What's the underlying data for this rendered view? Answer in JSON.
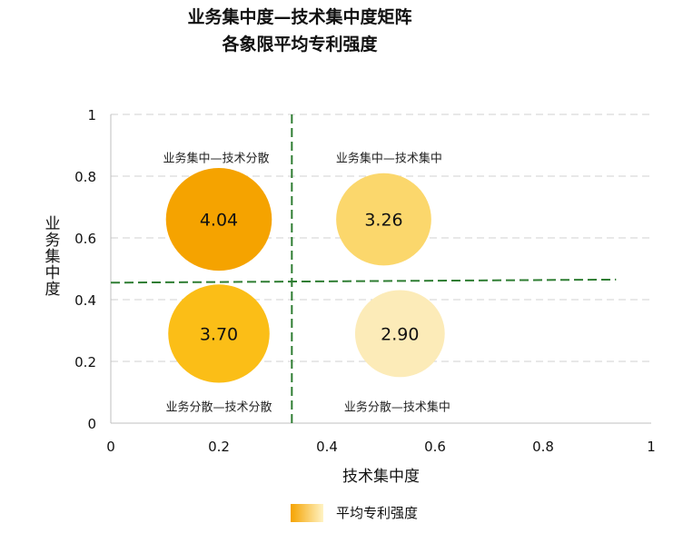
{
  "chart_data": {
    "type": "scatter",
    "title": "业务集中度—技术集中度矩阵",
    "subtitle": "各象限平均专利强度",
    "xlabel": "技术集中度",
    "ylabel": "业务集中度",
    "xlim": [
      0,
      1
    ],
    "ylim": [
      0,
      1
    ],
    "x_ticks": [
      "0",
      "0.2",
      "0.4",
      "0.6",
      "0.8",
      "1"
    ],
    "y_ticks": [
      "0",
      "0.2",
      "0.4",
      "0.6",
      "0.8",
      "1"
    ],
    "grid": true,
    "divider_x": 0.335,
    "divider_y_start": 0.455,
    "divider_y_end": 0.465,
    "series": [
      {
        "name": "平均专利强度",
        "points": [
          {
            "x": 0.2,
            "y": 0.66,
            "value": 4.04,
            "label": "4.04",
            "color": "#F5A300",
            "quadrant": "业务集中—技术分散"
          },
          {
            "x": 0.505,
            "y": 0.66,
            "value": 3.26,
            "label": "3.26",
            "color": "#FBD76C",
            "quadrant": "业务集中—技术集中"
          },
          {
            "x": 0.2,
            "y": 0.29,
            "value": 3.7,
            "label": "3.70",
            "color": "#FBBE17",
            "quadrant": "业务分散—技术分散"
          },
          {
            "x": 0.535,
            "y": 0.29,
            "value": 2.9,
            "label": "2.90",
            "color": "#FCEBB8",
            "quadrant": "业务分散—技术集中"
          }
        ]
      }
    ],
    "quadrant_labels": [
      {
        "text": "业务集中—技术分散",
        "x": 0.195,
        "y": 0.86
      },
      {
        "text": "业务集中—技术集中",
        "x": 0.515,
        "y": 0.86
      },
      {
        "text": "业务分散—技术分散",
        "x": 0.2,
        "y": 0.055
      },
      {
        "text": "业务分散—技术集中",
        "x": 0.53,
        "y": 0.055
      }
    ],
    "legend": {
      "label": "平均专利强度",
      "position": "bottom"
    },
    "colors": {
      "grid": "#D9D9D9",
      "axis": "#BFBFBF",
      "divider": "#2E7D32",
      "legend_from": "#F5A300",
      "legend_to": "#FFF3C4"
    }
  }
}
